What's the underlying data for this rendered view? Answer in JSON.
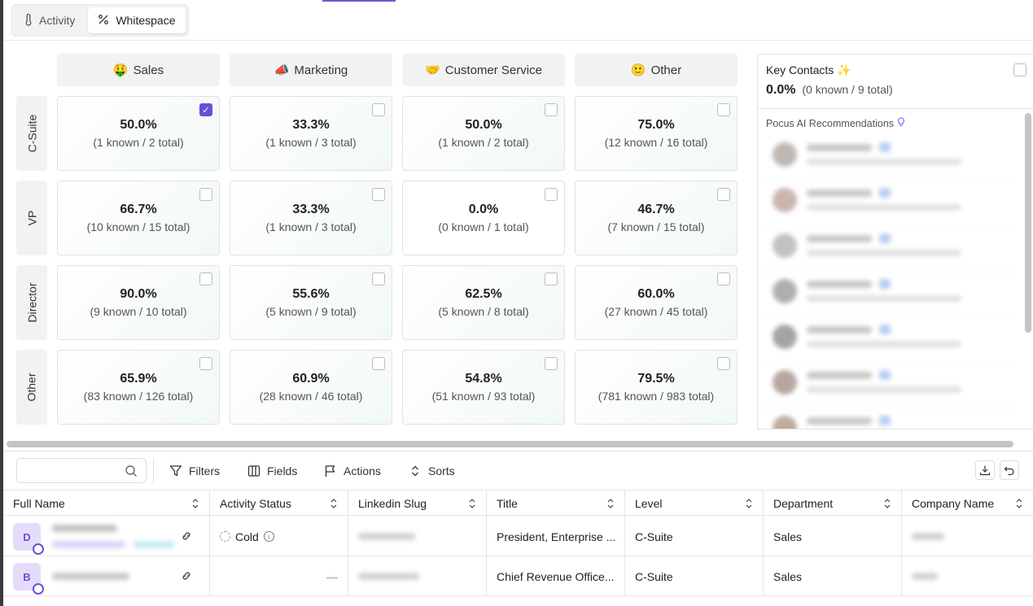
{
  "tabs": [
    {
      "label": "Activity",
      "icon": "thermometer-icon",
      "active": false
    },
    {
      "label": "Whitespace",
      "icon": "percent-icon",
      "active": true
    }
  ],
  "matrix": {
    "columns": [
      {
        "emoji": "🤑",
        "label": "Sales"
      },
      {
        "emoji": "📣",
        "label": "Marketing"
      },
      {
        "emoji": "🤝",
        "label": "Customer Service"
      },
      {
        "emoji": "🙂",
        "label": "Other"
      }
    ],
    "rows": [
      "C-Suite",
      "VP",
      "Director",
      "Other"
    ],
    "cells": [
      [
        {
          "pct": "50.0%",
          "sub": "(1 known / 2 total)",
          "checked": true
        },
        {
          "pct": "33.3%",
          "sub": "(1 known / 3 total)",
          "checked": false
        },
        {
          "pct": "50.0%",
          "sub": "(1 known / 2 total)",
          "checked": false
        },
        {
          "pct": "75.0%",
          "sub": "(12 known / 16 total)",
          "checked": false
        }
      ],
      [
        {
          "pct": "66.7%",
          "sub": "(10 known / 15 total)",
          "checked": false
        },
        {
          "pct": "33.3%",
          "sub": "(1 known / 3 total)",
          "checked": false
        },
        {
          "pct": "0.0%",
          "sub": "(0 known / 1 total)",
          "checked": false
        },
        {
          "pct": "46.7%",
          "sub": "(7 known / 15 total)",
          "checked": false
        }
      ],
      [
        {
          "pct": "90.0%",
          "sub": "(9 known / 10 total)",
          "checked": false
        },
        {
          "pct": "55.6%",
          "sub": "(5 known / 9 total)",
          "checked": false
        },
        {
          "pct": "62.5%",
          "sub": "(5 known / 8 total)",
          "checked": false
        },
        {
          "pct": "60.0%",
          "sub": "(27 known / 45 total)",
          "checked": false
        }
      ],
      [
        {
          "pct": "65.9%",
          "sub": "(83 known / 126 total)",
          "checked": false
        },
        {
          "pct": "60.9%",
          "sub": "(28 known / 46 total)",
          "checked": false
        },
        {
          "pct": "54.8%",
          "sub": "(51 known / 93 total)",
          "checked": false
        },
        {
          "pct": "79.5%",
          "sub": "(781 known / 983 total)",
          "checked": false
        }
      ]
    ]
  },
  "key_contacts": {
    "title": "Key Contacts",
    "title_icon": "✨",
    "pct": "0.0%",
    "sub": "(0 known / 9 total)",
    "ai_label": "Pocus AI Recommendations",
    "ai_icon": "lightbulb-icon"
  },
  "toolbar": {
    "search_placeholder": "",
    "filters_label": "Filters",
    "fields_label": "Fields",
    "actions_label": "Actions",
    "sorts_label": "Sorts"
  },
  "table": {
    "columns": [
      "Full Name",
      "Activity Status",
      "Linkedin Slug",
      "Title",
      "Level",
      "Department",
      "Company Name"
    ],
    "rows": [
      {
        "initial": "D",
        "status": "Cold",
        "title": "President, Enterprise ...",
        "level": "C-Suite",
        "department": "Sales"
      },
      {
        "initial": "B",
        "status": "—",
        "title": "Chief Revenue Office...",
        "level": "C-Suite",
        "department": "Sales"
      }
    ]
  }
}
